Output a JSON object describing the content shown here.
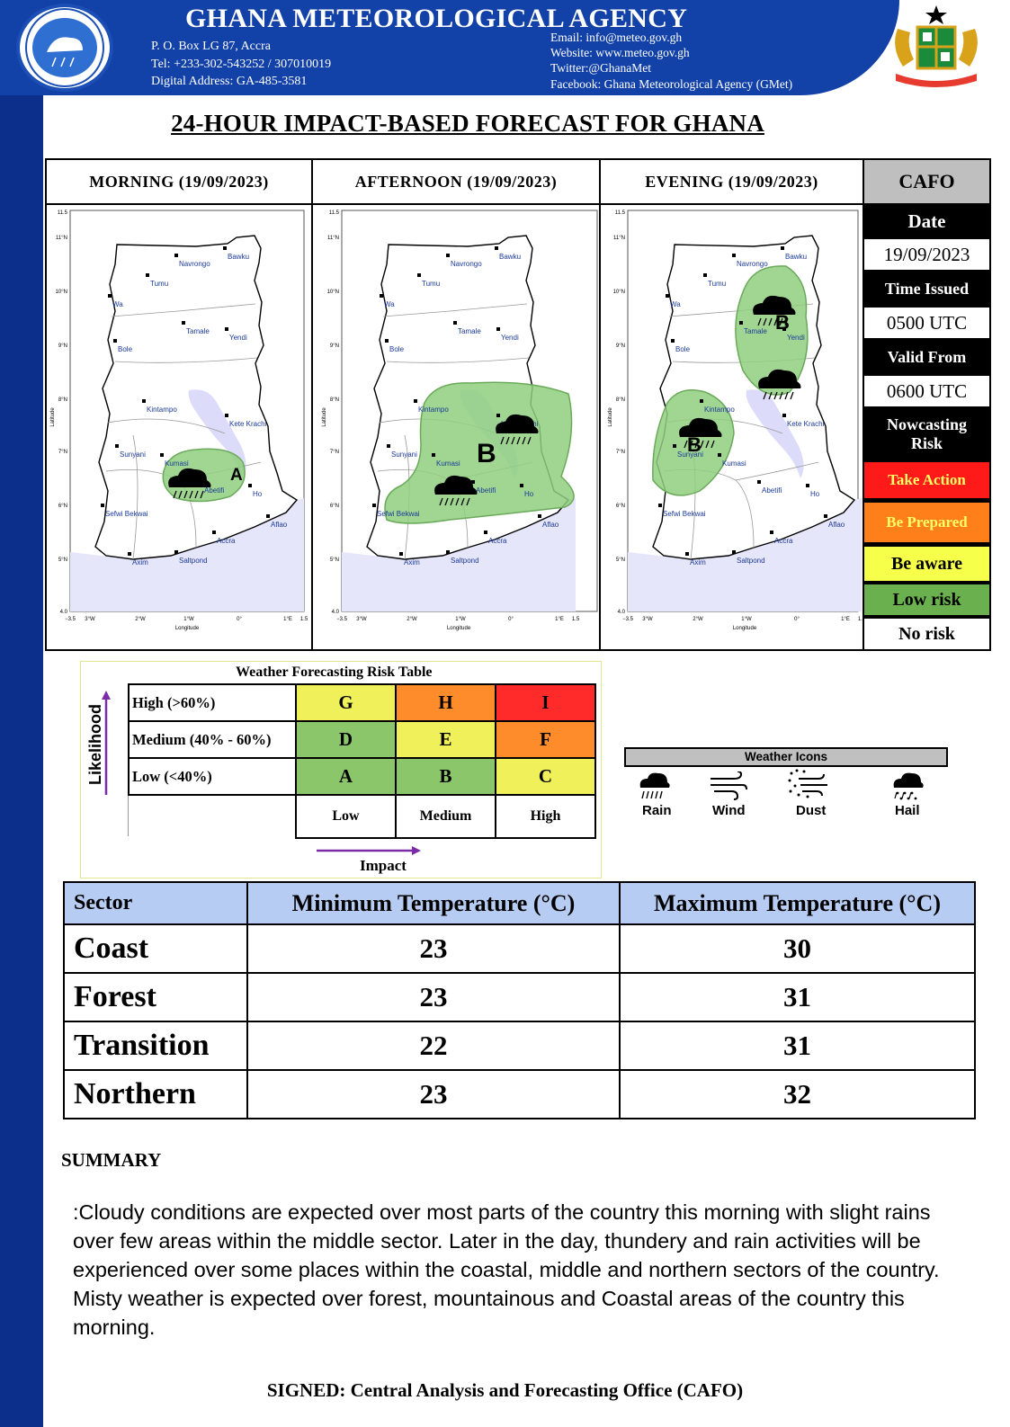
{
  "header": {
    "agency_name": "GHANA METEOROLOGICAL AGENCY",
    "address_lines": [
      "P. O. Box  LG 87, Accra",
      "Tel:  +233-302-543252 / 307010019",
      "Digital  Address:  GA-485-3581"
    ],
    "contact_lines": [
      "Email:  info@meteo.gov.gh",
      "Website: www.meteo.gov.gh",
      "Twitter:@GhanaMet",
      "Facebook: Ghana Meteorological Agency (GMet)"
    ],
    "logo_icon": "gmet-logo-icon",
    "coat_of_arms_icon": "ghana-coat-of-arms-icon",
    "brand_color": "#1241a8"
  },
  "title": "24-HOUR IMPACT-BASED FORECAST FOR GHANA",
  "panels": [
    {
      "heading": "MORNING  (19/09/2023)"
    },
    {
      "heading": "AFTERNOON  (19/09/2023)"
    },
    {
      "heading": "EVENING  (19/09/2023)"
    }
  ],
  "map": {
    "towns": [
      "Navrongo",
      "Bawku",
      "Tumu",
      "Wa",
      "Tamale",
      "Yendi",
      "Bole",
      "Kintampo",
      "Kete Krachi",
      "Sunyani",
      "Kumasi",
      "Abetifi",
      "Ho",
      "Sefwi Bekwai",
      "Aflao",
      "Accra",
      "Axim",
      "Saltpond"
    ],
    "lat_ticks": [
      "11.5",
      "11°N",
      "10°N",
      "9°N",
      "8°N",
      "7°N",
      "6°N",
      "5°N",
      "4.0"
    ],
    "lon_ticks": [
      "−3.5",
      "3°W",
      "2°W",
      "1°W",
      "0°",
      "1°E",
      "1.5"
    ],
    "xlabel": "Longitude",
    "ylabel": "Latitude",
    "risk_zone_color": "#8fcf7e",
    "morning_zone_label": "A",
    "afternoon_zone_label": "B",
    "evening_zone_labels": [
      "B",
      "B"
    ],
    "rain_icon": "rain-cloud-icon"
  },
  "cafo": {
    "header": "CAFO",
    "date_label": "Date",
    "date_value": "19/09/2023",
    "time_issued_label": "Time Issued",
    "time_issued_value": "0500 UTC",
    "valid_from_label": "Valid From",
    "valid_from_value": "0600 UTC",
    "nowcasting_label": "Nowcasting Risk",
    "legend": [
      {
        "label": "Take Action",
        "color": "#ff1a1a",
        "text_color": "#ffff66"
      },
      {
        "label": "Be Prepared",
        "color": "#ff7f1a",
        "text_color": "#ffff66"
      },
      {
        "label": "Be aware",
        "color": "#f6ff4a",
        "text_color": "#000000"
      },
      {
        "label": "Low risk",
        "color": "#6bb04f",
        "text_color": "#000000"
      },
      {
        "label": "No risk",
        "color": "#ffffff",
        "text_color": "#000000"
      }
    ]
  },
  "risk_table": {
    "title": "Weather Forecasting Risk Table",
    "likelihood_label": "Likelihood",
    "impact_label": "Impact",
    "rows": [
      {
        "label": "High (>60%)",
        "cells": [
          "G",
          "H",
          "I"
        ],
        "colors": [
          "#f0f05a",
          "#ff8c2a",
          "#ff2b2b"
        ]
      },
      {
        "label": "Medium (40% - 60%)",
        "cells": [
          "D",
          "E",
          "F"
        ],
        "colors": [
          "#8cc66b",
          "#f0f05a",
          "#ff8c2a"
        ]
      },
      {
        "label": "Low (<40%)",
        "cells": [
          "A",
          "B",
          "C"
        ],
        "colors": [
          "#8cc66b",
          "#8cc66b",
          "#f0f05a"
        ]
      }
    ],
    "impact_levels": [
      "Low",
      "Medium",
      "High"
    ]
  },
  "weather_icons": {
    "header": "Weather Icons",
    "items": [
      {
        "label": "Rain",
        "icon": "rain-icon"
      },
      {
        "label": "Wind",
        "icon": "wind-icon"
      },
      {
        "label": "Dust",
        "icon": "dust-icon"
      },
      {
        "label": "Hail",
        "icon": "hail-icon"
      }
    ]
  },
  "temperature": {
    "headers": [
      "Sector",
      "Minimum Temperature  (°C)",
      "Maximum Temperature  (°C)"
    ],
    "rows": [
      {
        "sector": "Coast",
        "min": "23",
        "max": "30"
      },
      {
        "sector": "Forest",
        "min": "23",
        "max": "31"
      },
      {
        "sector": "Transition",
        "min": "22",
        "max": "31"
      },
      {
        "sector": "Northern",
        "min": "23",
        "max": "32"
      }
    ]
  },
  "summary": {
    "heading": "SUMMARY",
    "text": ":Cloudy conditions are expected over most parts of the country this morning with slight rains over few areas within the middle sector. Later in the day, thundery and rain activities will be experienced over some places within the coastal, middle and northern sectors of the country. Misty weather is expected over forest, mountainous and Coastal areas of the country this morning."
  },
  "signed": "SIGNED:  Central Analysis and Forecasting Office (CAFO)"
}
